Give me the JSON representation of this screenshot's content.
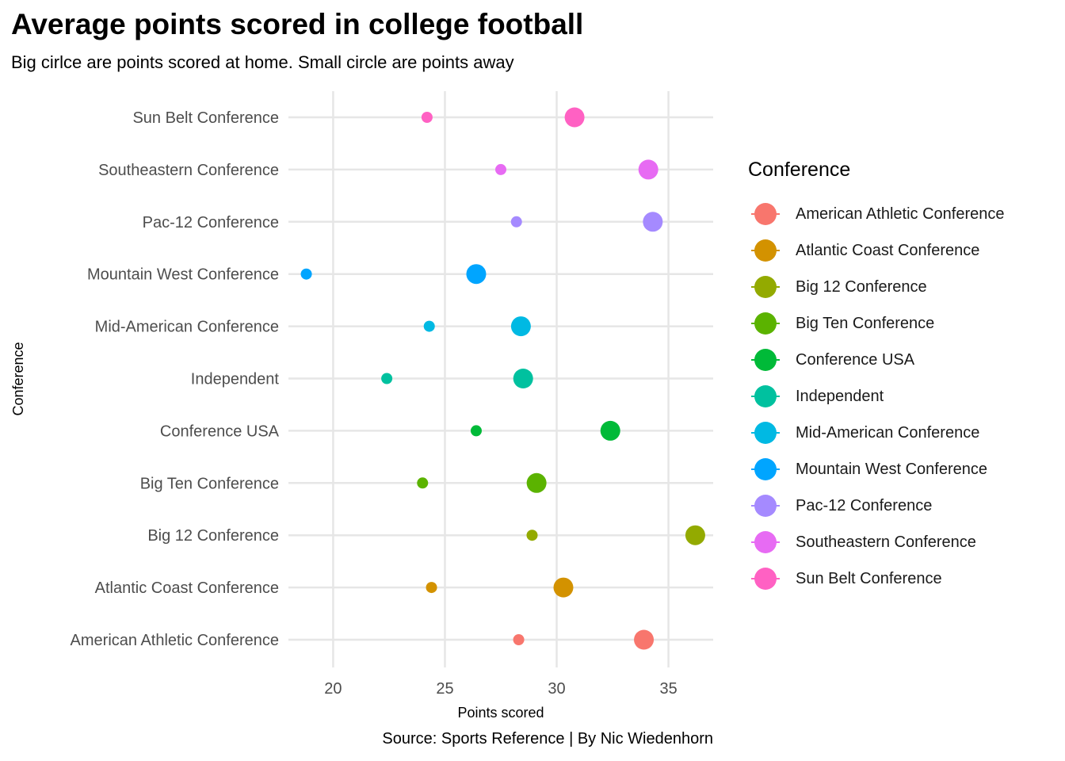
{
  "title": "Average points scored in college football",
  "subtitle": "Big cirlce are points scored at home. Small circle are points away",
  "caption": "Source: Sports Reference | By Nic Wiedenhorn",
  "legend_title": "Conference",
  "chart_data": {
    "type": "scatter",
    "xlabel": "Points scored",
    "ylabel": "Conference",
    "xlim": [
      18,
      37
    ],
    "x_ticks": [
      20,
      25,
      30,
      35
    ],
    "grid": true,
    "legend_position": "right",
    "categories": [
      "American Athletic Conference",
      "Atlantic Coast Conference",
      "Big 12 Conference",
      "Big Ten Conference",
      "Conference USA",
      "Independent",
      "Mid-American Conference",
      "Mountain West Conference",
      "Pac-12 Conference",
      "Southeastern Conference",
      "Sun Belt Conference"
    ],
    "colors": [
      "#F8766D",
      "#D39200",
      "#93AA00",
      "#5BB300",
      "#00BA38",
      "#00C19F",
      "#00B9E3",
      "#00A5FF",
      "#A58AFF",
      "#E76BF3",
      "#FF61C3"
    ],
    "series": [
      {
        "values": [
          33.9,
          30.3,
          36.2,
          29.1,
          32.4,
          28.5,
          28.4,
          26.4,
          34.3,
          34.1,
          30.8
        ]
      },
      {
        "values": [
          28.3,
          24.4,
          28.9,
          24.0,
          26.4,
          22.4,
          24.3,
          18.8,
          28.2,
          27.5,
          24.2
        ]
      }
    ]
  }
}
